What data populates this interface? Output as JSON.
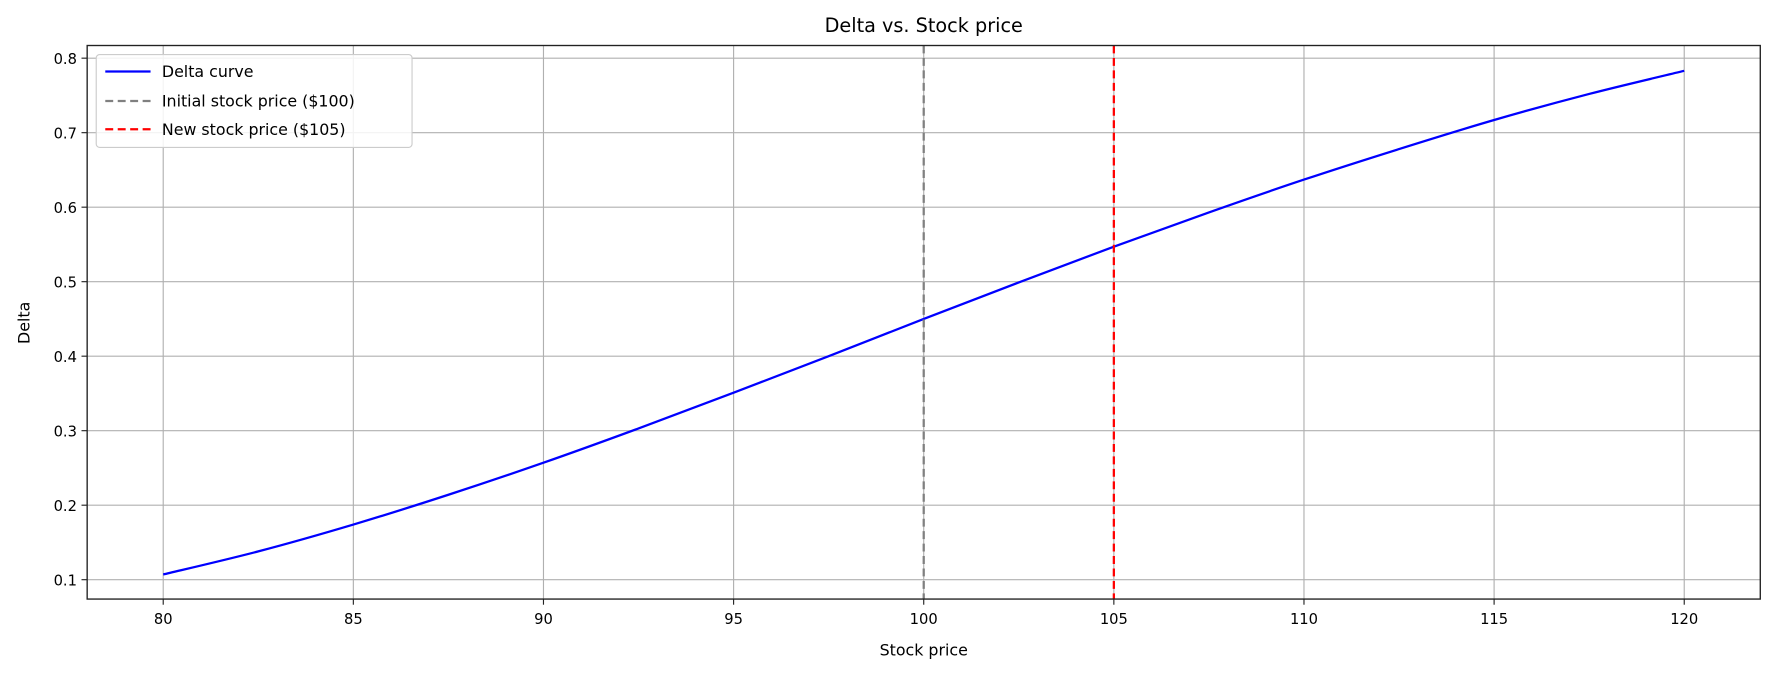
{
  "chart_data": {
    "type": "line",
    "title": "Delta vs. Stock price",
    "xlabel": "Stock price",
    "ylabel": "Delta",
    "xlim": [
      78,
      122
    ],
    "ylim": [
      0.074,
      0.817
    ],
    "grid": true,
    "legend_placement": "upper-left",
    "xticks": [
      "80",
      "85",
      "90",
      "95",
      "100",
      "105",
      "110",
      "115",
      "120"
    ],
    "yticks": [
      "0.1",
      "0.2",
      "0.3",
      "0.4",
      "0.5",
      "0.6",
      "0.7",
      "0.8"
    ],
    "series": [
      {
        "name": "Delta curve",
        "color": "#0000ff",
        "style": "solid",
        "x": [
          80,
          82.5,
          85,
          87.5,
          90,
          92.5,
          95,
          97.5,
          100,
          102.5,
          105,
          107.5,
          110,
          112.5,
          115,
          117.5,
          120
        ],
        "y": [
          0.107,
          0.138,
          0.174,
          0.214,
          0.257,
          0.303,
          0.351,
          0.4,
          0.45,
          0.499,
          0.547,
          0.593,
          0.637,
          0.678,
          0.717,
          0.752,
          0.783
        ]
      }
    ],
    "vlines": [
      {
        "name": "Initial stock price ($100)",
        "x": 100,
        "color": "#808080",
        "style": "dashed"
      },
      {
        "name": "New stock price ($105)",
        "x": 105,
        "color": "#ff0000",
        "style": "dashed"
      }
    ]
  }
}
